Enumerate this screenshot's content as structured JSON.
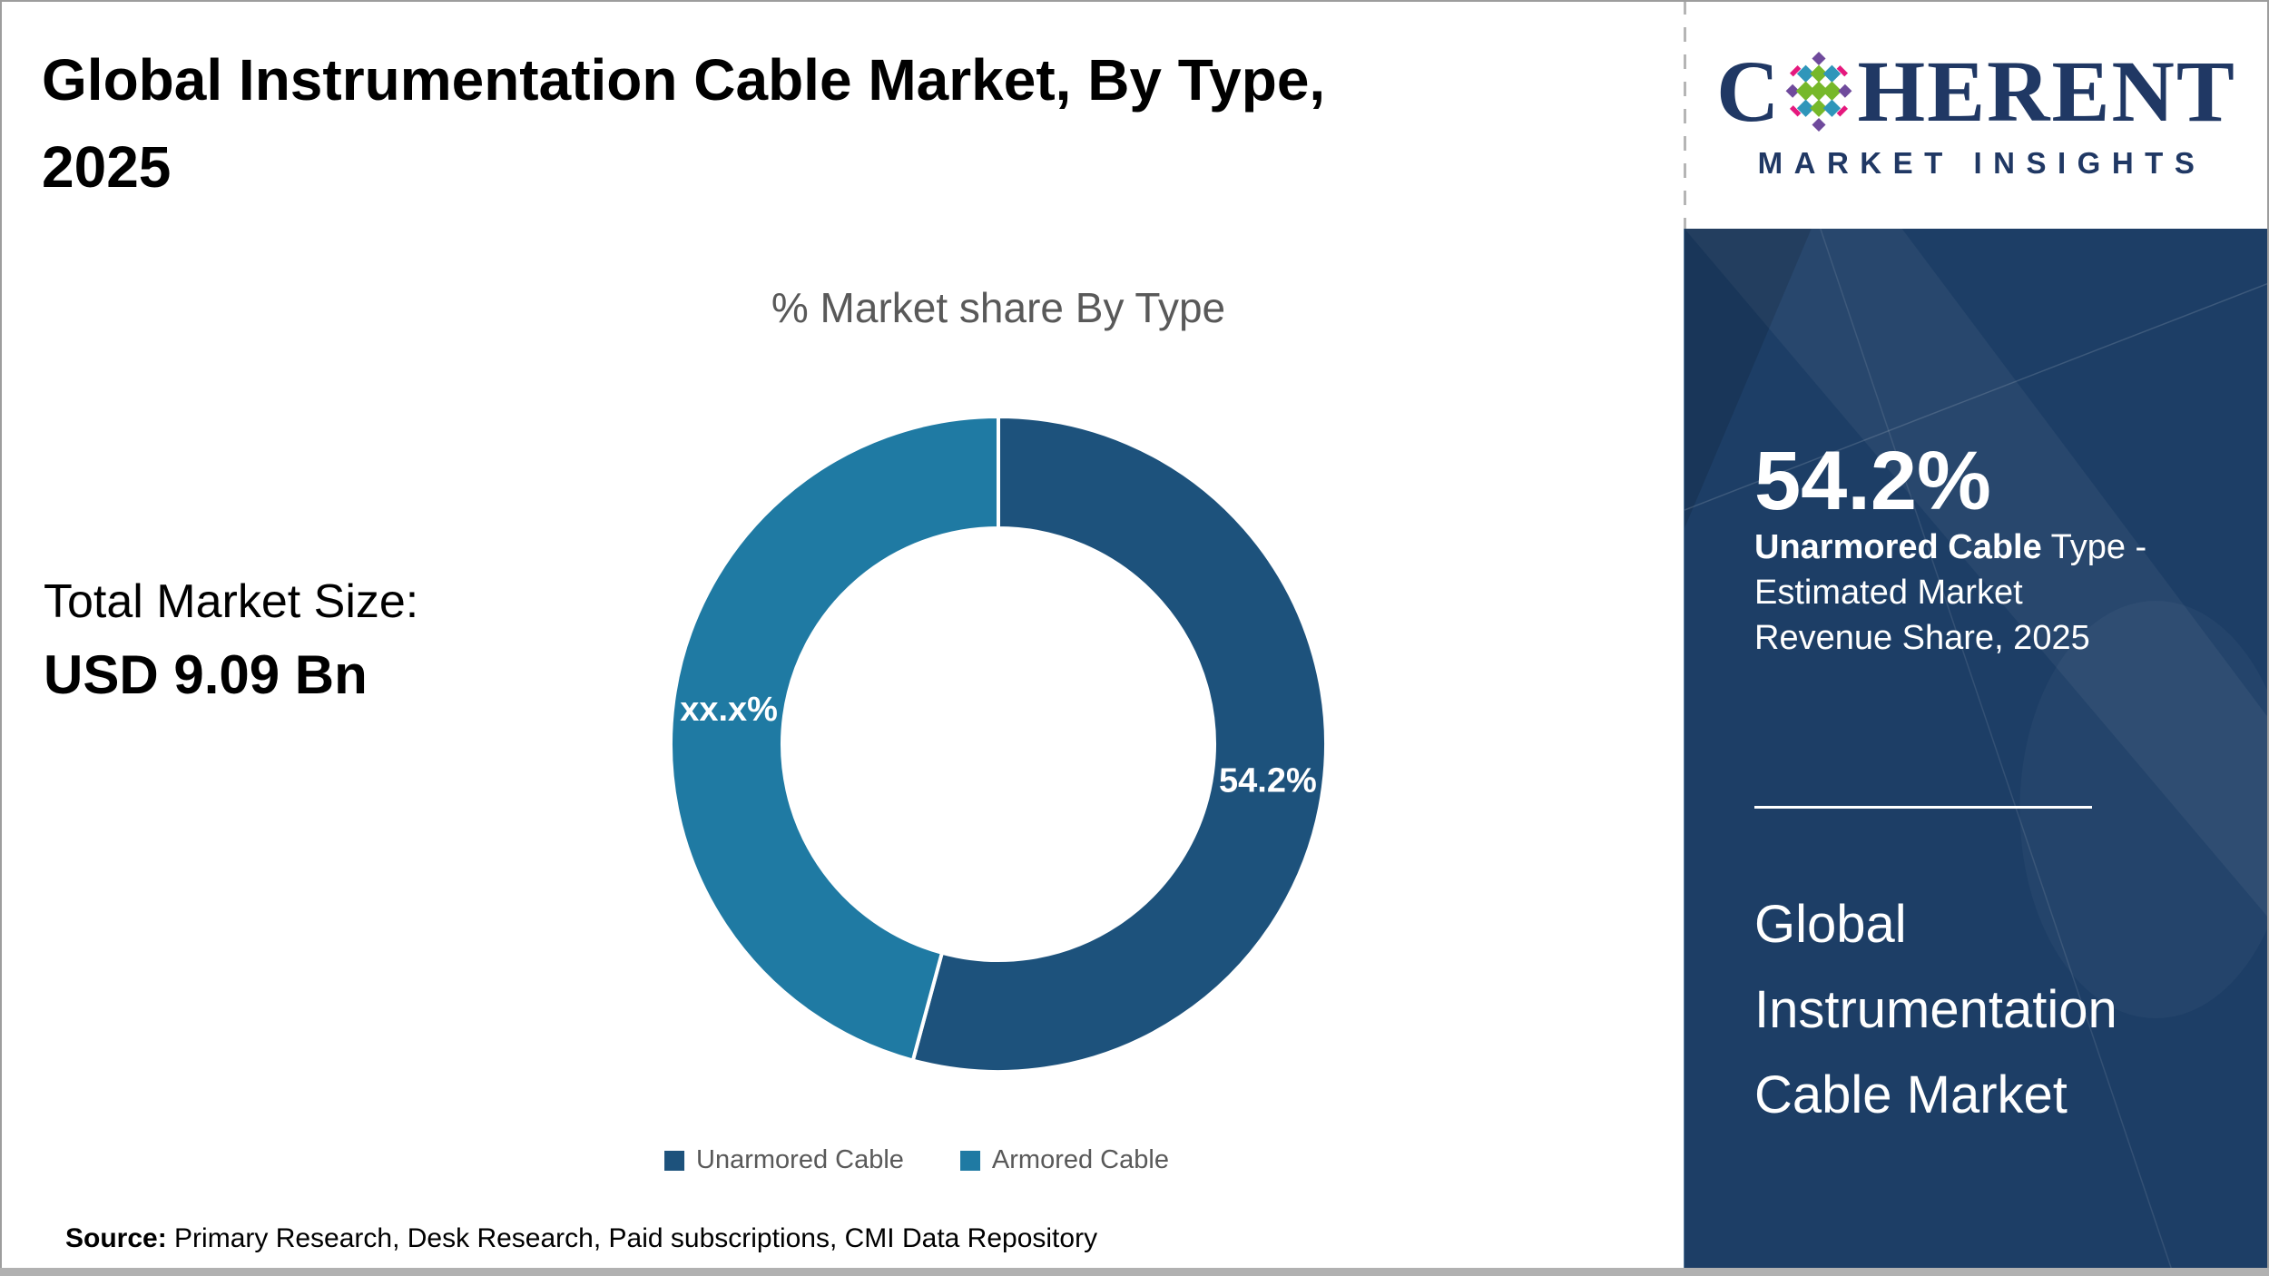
{
  "header": {
    "title": "Global Instrumentation Cable Market, By Type,\n2025"
  },
  "logo": {
    "brand_c": "C",
    "brand_rest": "HERENT",
    "subtitle": "MARKET INSIGHTS",
    "navy": "#203864",
    "dot_colors": {
      "green": "#76b82a",
      "teal": "#2f96ba",
      "purple": "#6f4a9c",
      "pink": "#e5187d"
    }
  },
  "stats": {
    "total_label": "Total Market Size:",
    "total_value": "USD 9.09 Bn"
  },
  "chart_data": {
    "type": "pie",
    "subtype": "donut",
    "title": "% Market share By Type",
    "categories": [
      "Unarmored Cable",
      "Armored Cable"
    ],
    "values": [
      54.2,
      45.8
    ],
    "value_labels": [
      "54.2%",
      "xx.x%"
    ],
    "colors": [
      "#1d527c",
      "#1f7aa3"
    ],
    "start_angle_deg": 0,
    "legend_position": "bottom"
  },
  "sidebar": {
    "headline": "54.2%",
    "desc_bold": "Unarmored Cable",
    "desc_rest": " Type -\nEstimated Market\nRevenue Share, 2025",
    "market_name": "Global\nInstrumentation\nCable Market",
    "background": "#1d3e66"
  },
  "footer": {
    "source_label": "Source:",
    "source_text": " Primary Research, Desk Research, Paid subscriptions, CMI Data Repository"
  }
}
